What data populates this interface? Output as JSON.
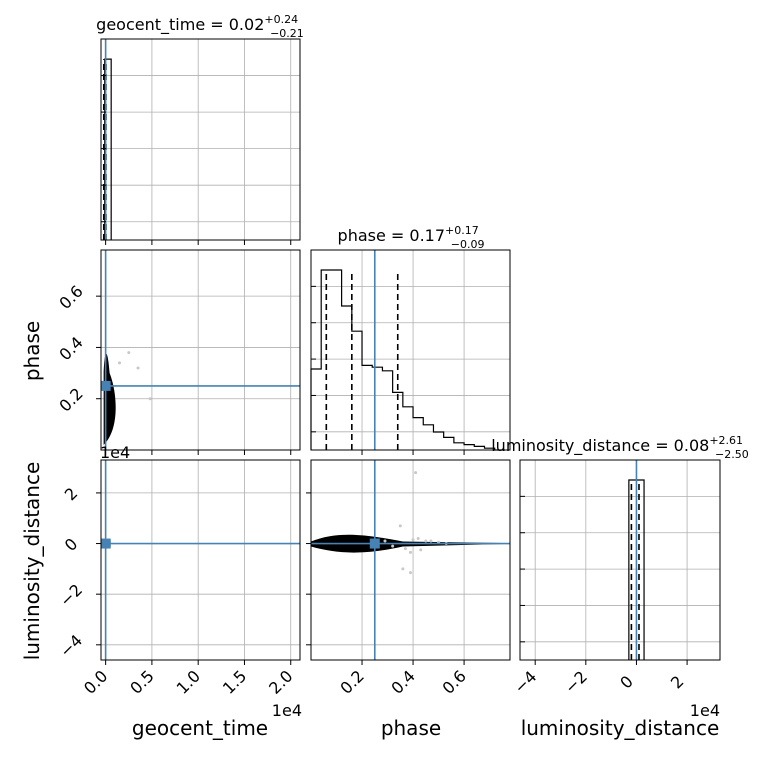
{
  "chart_data": {
    "type": "corner",
    "parameters": [
      "geocent_time",
      "phase",
      "luminosity_distance"
    ],
    "truths": {
      "geocent_time": 0.0,
      "phase": 0.25,
      "luminosity_distance": 0.0
    },
    "truth_color": "#4682b4",
    "titles": {
      "geocent_time": {
        "label": "geocent_time = 0.02",
        "plus": "+0.24",
        "minus": "−0.21"
      },
      "phase": {
        "label": "phase = 0.17",
        "plus": "+0.17",
        "minus": "−0.09"
      },
      "luminosity_distance": {
        "label": "luminosity_distance = 0.08",
        "plus": "+2.61",
        "minus": "−2.50"
      }
    },
    "axis_labels": {
      "geocent_time": "geocent_time",
      "phase": "phase",
      "luminosity_distance": "luminosity_distance"
    },
    "offsets": {
      "geocent_time_x": "1e4",
      "luminosity_distance_y": "1e4",
      "luminosity_distance_x": "1e4"
    },
    "ranges": {
      "geocent_time": [
        -500,
        21000
      ],
      "phase": [
        0.0,
        0.78
      ],
      "luminosity_distance": [
        -4.6,
        3.3
      ]
    },
    "ticks": {
      "geocent_time": {
        "values": [
          0,
          5000,
          10000,
          15000,
          20000
        ],
        "labels": [
          "0.0",
          "0.5",
          "1.0",
          "1.5",
          "2.0"
        ]
      },
      "phase": {
        "values": [
          0.2,
          0.4,
          0.6
        ],
        "labels": [
          "0.2",
          "0.4",
          "0.6"
        ]
      },
      "luminosity_distance": {
        "values": [
          -4,
          -2,
          0,
          2
        ],
        "labels": [
          "−4",
          "−2",
          "0",
          "2"
        ]
      }
    },
    "hist_phase": {
      "bin_edges": [
        0.0,
        0.04,
        0.08,
        0.12,
        0.16,
        0.2,
        0.24,
        0.28,
        0.32,
        0.36,
        0.4,
        0.44,
        0.48,
        0.52,
        0.56,
        0.6,
        0.64,
        0.68,
        0.72,
        0.76
      ],
      "counts": [
        0.45,
        1.0,
        1.0,
        0.8,
        0.66,
        0.47,
        0.46,
        0.44,
        0.32,
        0.24,
        0.18,
        0.14,
        0.1,
        0.07,
        0.04,
        0.03,
        0.02,
        0.01,
        0.0
      ],
      "quantiles": [
        0.06,
        0.16,
        0.34
      ]
    },
    "hist_geocent_time": {
      "bin_edges": [
        -100,
        250,
        600
      ],
      "counts": [
        1.0,
        1.0
      ],
      "quantiles": [
        -200,
        30
      ]
    },
    "hist_luminosity_distance": {
      "bin_edges": [
        -0.3,
        0.05,
        0.3
      ],
      "counts": [
        1.0,
        1.0
      ],
      "quantiles": [
        -0.2,
        0.1
      ]
    },
    "scatter_phase_vs_dist": [
      [
        0.41,
        2.8
      ],
      [
        0.35,
        0.7
      ],
      [
        0.39,
        -0.35
      ],
      [
        0.43,
        -0.25
      ],
      [
        0.36,
        -1.0
      ],
      [
        0.39,
        -1.15
      ],
      [
        0.29,
        0.1
      ],
      [
        0.32,
        -0.1
      ],
      [
        0.45,
        0.1
      ],
      [
        0.47,
        0.1
      ],
      [
        0.5,
        0.05
      ],
      [
        0.53,
        0.0
      ],
      [
        0.42,
        0.2
      ],
      [
        0.37,
        -0.2
      ],
      [
        0.4,
        0.15
      ]
    ],
    "scatter_time_vs_phase": [
      [
        2500,
        0.38
      ],
      [
        1500,
        0.34
      ],
      [
        4800,
        0.2
      ],
      [
        3500,
        0.32
      ]
    ]
  }
}
